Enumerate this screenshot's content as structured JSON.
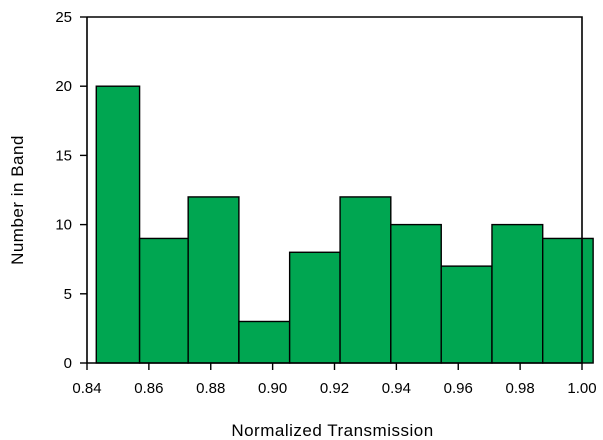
{
  "chart_data": {
    "type": "bar",
    "title": "",
    "xlabel": "Normalized Transmission",
    "ylabel": "Number in Band",
    "bar_color": "#00A651",
    "edge_color": "#000000",
    "xlim": [
      0.84,
      1.0
    ],
    "ylim": [
      0,
      25
    ],
    "x_ticks": [
      "0.84",
      "0.86",
      "0.88",
      "0.90",
      "0.92",
      "0.94",
      "0.96",
      "0.98",
      "1.00"
    ],
    "y_ticks": [
      "0",
      "5",
      "10",
      "15",
      "20",
      "25"
    ],
    "bins": [
      {
        "start": 0.843,
        "end": 0.857,
        "value": 20
      },
      {
        "start": 0.857,
        "end": 0.8727,
        "value": 9
      },
      {
        "start": 0.8727,
        "end": 0.8891,
        "value": 12
      },
      {
        "start": 0.8891,
        "end": 0.9055,
        "value": 3
      },
      {
        "start": 0.9055,
        "end": 0.9218,
        "value": 8
      },
      {
        "start": 0.9218,
        "end": 0.9382,
        "value": 12
      },
      {
        "start": 0.9382,
        "end": 0.9545,
        "value": 10
      },
      {
        "start": 0.9545,
        "end": 0.9709,
        "value": 7
      },
      {
        "start": 0.9709,
        "end": 0.9873,
        "value": 10
      },
      {
        "start": 0.9873,
        "end": 1.0036,
        "value": 9
      }
    ],
    "grid": false,
    "legend": "none"
  }
}
